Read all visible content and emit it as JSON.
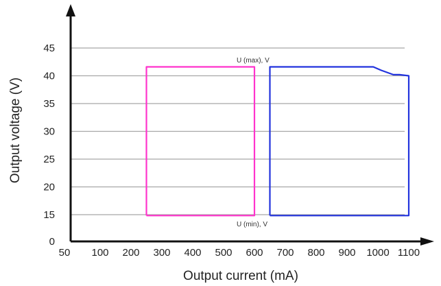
{
  "chart_data": {
    "type": "line",
    "title": "",
    "xlabel": "Output current (mA)",
    "ylabel": "Output voltage (V)",
    "x_ticks": [
      "50",
      "100",
      "200",
      "300",
      "400",
      "500",
      "600",
      "700",
      "800",
      "900",
      "1000",
      "1100"
    ],
    "y_ticks": [
      "0",
      "15",
      "20",
      "25",
      "30",
      "35",
      "40",
      "45"
    ],
    "y_gridlines": [
      15,
      20,
      25,
      30,
      35,
      40,
      45
    ],
    "grid": "horizontal",
    "legend": "none",
    "annotations": {
      "top": "U (max), V",
      "bottom": "U (min), V"
    },
    "series": [
      {
        "color": "#ff33cc",
        "points": [
          [
            250,
            14.5
          ],
          [
            250,
            41.6
          ],
          [
            600,
            41.6
          ],
          [
            600,
            14.5
          ],
          [
            250,
            14.5
          ]
        ]
      },
      {
        "color": "#2233dd",
        "points": [
          [
            650,
            14.5
          ],
          [
            650,
            41.6
          ],
          [
            985,
            41.6
          ],
          [
            1010,
            41.0
          ],
          [
            1030,
            40.6
          ],
          [
            1050,
            40.2
          ],
          [
            1070,
            40.2
          ],
          [
            1100,
            40.0
          ],
          [
            1100,
            14.5
          ],
          [
            650,
            14.5
          ]
        ]
      }
    ]
  }
}
